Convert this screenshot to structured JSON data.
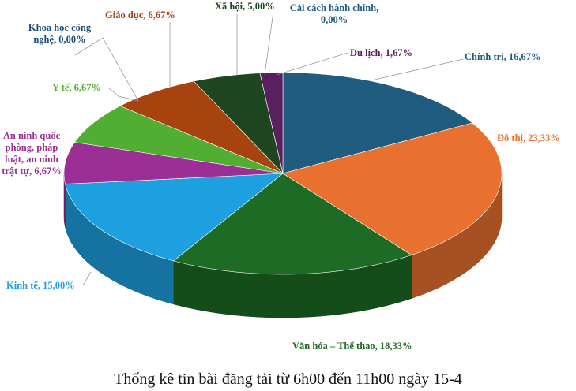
{
  "chart_data": {
    "type": "pie3d",
    "title": "Thống kê tin bài đăng tải từ 6h00 đến 11h00 ngày 15-4",
    "values": [
      16.67,
      23.33,
      18.33,
      15,
      6.67,
      6.67,
      0,
      6.67,
      5,
      0,
      1.67
    ],
    "value_labels": [
      "Chính trị, 16,67%",
      "Đô thị, 23,33%",
      "Văn hóa – Thể thao, 18,33%",
      "Kinh tế, 15,00%",
      "An ninh quốc phòng, pháp luật, an ninh trật tự, 6,67%",
      "Y tế, 6,67%",
      "Khoa học công nghệ, 0,00%",
      "Giáo dục, 6,67%",
      "Xã hội, 5,00%",
      "Cải cách hành chính, 0,00%",
      "Du lịch, 1,67%"
    ],
    "colors": [
      "#1f5c80",
      "#e8712f",
      "#1d6b24",
      "#1ea0e0",
      "#9c2f96",
      "#52ad33",
      "#1f4e79",
      "#a8420e",
      "#1e4620",
      "#1f5c80",
      "#5a1f5e"
    ]
  }
}
